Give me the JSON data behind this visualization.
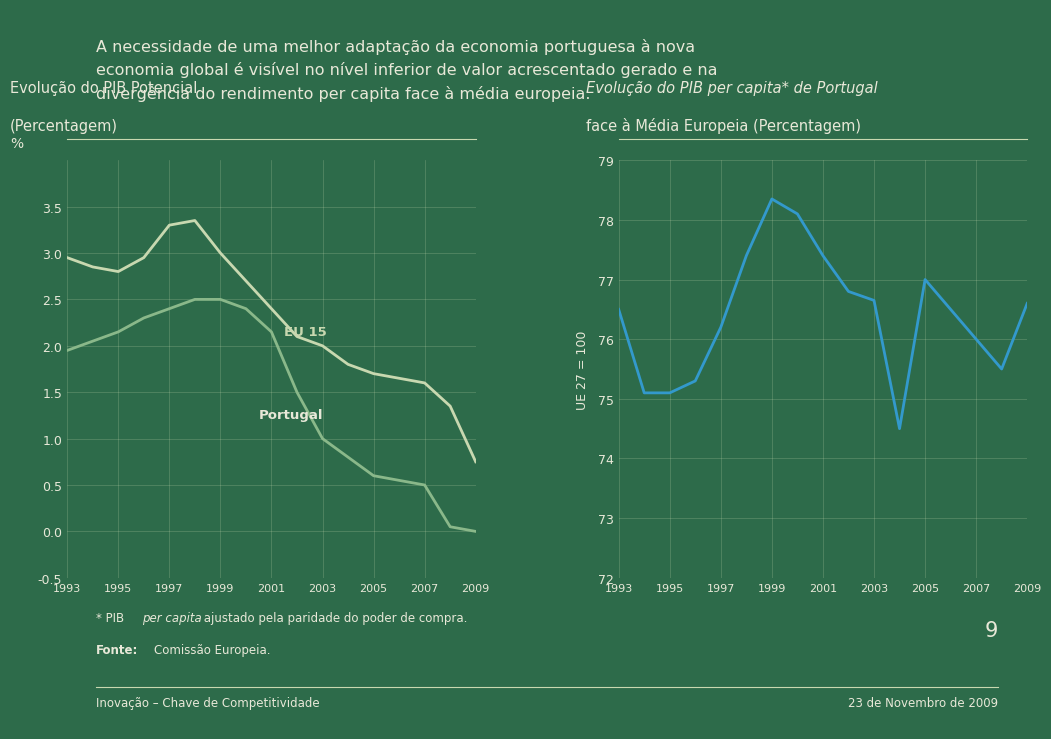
{
  "bg_color": "#2d6b4a",
  "text_color": "#e8e8d8",
  "title_text": "A necessidade de uma melhor adaptação da economia portuguesa à nova\neconomia global é visível no nível inferior de valor acrescentado gerado e na\ndivergência do rendimento per capita face à média europeia.",
  "chart1_title_line1": "Evolução do PIB Potencial",
  "chart1_title_line2": "(Percentagem)",
  "chart2_title_line1": "Evolução do PIB per capita* de Portugal",
  "chart2_title_line2": "face à Média Europeia (Percentagem)",
  "years": [
    1993,
    1994,
    1995,
    1996,
    1997,
    1998,
    1999,
    2000,
    2001,
    2002,
    2003,
    2004,
    2005,
    2006,
    2007,
    2008,
    2009
  ],
  "eu15": [
    2.95,
    2.85,
    2.8,
    2.95,
    3.3,
    3.35,
    3.0,
    2.7,
    2.4,
    2.1,
    2.0,
    1.8,
    1.7,
    1.65,
    1.6,
    1.35,
    0.75
  ],
  "portugal": [
    1.95,
    2.05,
    2.15,
    2.3,
    2.4,
    2.5,
    2.5,
    2.4,
    2.15,
    1.5,
    1.0,
    0.8,
    0.6,
    0.55,
    0.5,
    0.05,
    0.0
  ],
  "eu15_color": "#c8d8b0",
  "portugal_color": "#8ab88a",
  "chart1_ylabel": "%",
  "chart1_ylim": [
    -0.5,
    4.0
  ],
  "chart1_yticks": [
    -0.5,
    0.0,
    0.5,
    1.0,
    1.5,
    2.0,
    2.5,
    3.0,
    3.5
  ],
  "pib_years": [
    1993,
    1994,
    1995,
    1996,
    1997,
    1998,
    1999,
    2000,
    2001,
    2002,
    2003,
    2004,
    2005,
    2006,
    2007,
    2008,
    2009
  ],
  "pib_values": [
    76.5,
    75.1,
    75.1,
    75.3,
    76.2,
    77.4,
    78.35,
    78.1,
    77.4,
    76.8,
    76.65,
    74.5,
    77.0,
    76.5,
    76.0,
    75.5,
    76.6
  ],
  "pib_color": "#3399cc",
  "chart2_ylabel": "UE 27 = 100",
  "chart2_ylim": [
    72,
    79
  ],
  "chart2_yticks": [
    72,
    73,
    74,
    75,
    76,
    77,
    78,
    79
  ],
  "grid_color": "#c8d8b0",
  "grid_alpha": 0.3,
  "footer_left": "Inovação – Chave de Competitividade",
  "footer_right": "23 de Novembro de 2009",
  "page_number": "9",
  "line_color": "#c8d8b0",
  "xticks": [
    1993,
    1995,
    1997,
    1999,
    2001,
    2003,
    2005,
    2007,
    2009
  ],
  "xtick_labels": [
    "1993",
    "1995",
    "1997",
    "1999",
    "2001",
    "2003",
    "2005",
    "2007",
    "2009"
  ]
}
